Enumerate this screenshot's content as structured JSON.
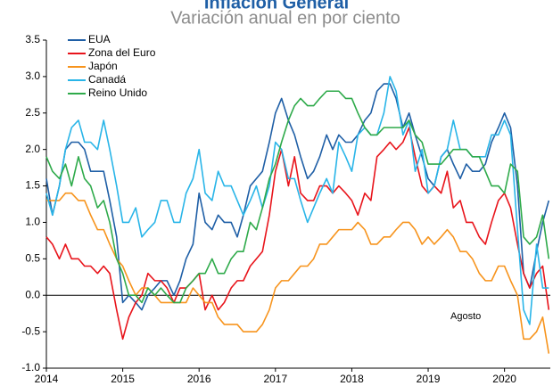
{
  "chart_data": {
    "type": "line",
    "title": "Inflación General",
    "subtitle": "Variación anual en por ciento",
    "annotation": "Agosto",
    "x": [
      2014,
      2014.08,
      2014.17,
      2014.25,
      2014.33,
      2014.42,
      2014.5,
      2014.58,
      2014.67,
      2014.75,
      2014.83,
      2014.92,
      2015,
      2015.08,
      2015.17,
      2015.25,
      2015.33,
      2015.42,
      2015.5,
      2015.58,
      2015.67,
      2015.75,
      2015.83,
      2015.92,
      2016,
      2016.08,
      2016.17,
      2016.25,
      2016.33,
      2016.42,
      2016.5,
      2016.58,
      2016.67,
      2016.75,
      2016.83,
      2016.92,
      2017,
      2017.08,
      2017.17,
      2017.25,
      2017.33,
      2017.42,
      2017.5,
      2017.58,
      2017.67,
      2017.75,
      2017.83,
      2017.92,
      2018,
      2018.08,
      2018.17,
      2018.25,
      2018.33,
      2018.42,
      2018.5,
      2018.58,
      2018.67,
      2018.75,
      2018.83,
      2018.92,
      2019,
      2019.08,
      2019.17,
      2019.25,
      2019.33,
      2019.42,
      2019.5,
      2019.58,
      2019.67,
      2019.75,
      2019.83,
      2019.92,
      2020,
      2020.08,
      2020.17,
      2020.25,
      2020.33,
      2020.42,
      2020.5,
      2020.58
    ],
    "series": [
      {
        "name": "EUA",
        "color": "#1f5fa6",
        "values": [
          1.6,
          1.1,
          1.5,
          2.0,
          2.1,
          2.1,
          2.0,
          1.7,
          1.7,
          1.7,
          1.3,
          0.8,
          -0.1,
          0.0,
          -0.1,
          -0.2,
          0.0,
          0.1,
          0.2,
          0.2,
          0.0,
          0.2,
          0.5,
          0.7,
          1.4,
          1.0,
          0.9,
          1.1,
          1.0,
          1.0,
          0.8,
          1.1,
          1.5,
          1.6,
          1.7,
          2.1,
          2.5,
          2.7,
          2.4,
          2.2,
          1.9,
          1.6,
          1.7,
          1.9,
          2.2,
          2.0,
          2.2,
          2.1,
          2.1,
          2.2,
          2.4,
          2.5,
          2.8,
          2.9,
          2.9,
          2.7,
          2.3,
          2.5,
          2.2,
          1.9,
          1.6,
          1.5,
          1.9,
          2.0,
          1.8,
          1.6,
          1.8,
          1.7,
          1.7,
          1.8,
          2.1,
          2.3,
          2.5,
          2.3,
          1.5,
          0.3,
          0.1,
          0.6,
          1.0,
          1.3
        ]
      },
      {
        "name": "Zona del Euro",
        "color": "#e8141b",
        "values": [
          0.8,
          0.7,
          0.5,
          0.7,
          0.5,
          0.5,
          0.4,
          0.4,
          0.3,
          0.4,
          0.3,
          -0.2,
          -0.6,
          -0.3,
          -0.1,
          0.0,
          0.3,
          0.2,
          0.2,
          0.1,
          -0.1,
          0.1,
          0.1,
          0.2,
          0.3,
          -0.2,
          0.0,
          -0.2,
          -0.1,
          0.1,
          0.2,
          0.2,
          0.4,
          0.5,
          0.6,
          1.1,
          1.7,
          2.0,
          1.5,
          1.9,
          1.4,
          1.3,
          1.3,
          1.5,
          1.5,
          1.4,
          1.5,
          1.4,
          1.3,
          1.1,
          1.4,
          1.3,
          1.9,
          2.0,
          2.1,
          2.0,
          2.1,
          2.3,
          1.9,
          1.5,
          1.4,
          1.5,
          1.4,
          1.7,
          1.2,
          1.3,
          1.0,
          1.0,
          0.8,
          0.7,
          1.0,
          1.3,
          1.4,
          1.2,
          0.7,
          0.3,
          0.1,
          0.3,
          0.4,
          -0.2
        ]
      },
      {
        "name": "Japón",
        "color": "#f7941d",
        "values": [
          1.3,
          1.3,
          1.3,
          1.4,
          1.4,
          1.3,
          1.3,
          1.1,
          0.9,
          0.9,
          0.7,
          0.5,
          0.4,
          0.2,
          0.0,
          0.1,
          0.1,
          0.0,
          -0.1,
          -0.1,
          -0.1,
          -0.1,
          -0.1,
          0.1,
          0.0,
          -0.1,
          -0.1,
          -0.3,
          -0.4,
          -0.4,
          -0.4,
          -0.5,
          -0.5,
          -0.5,
          -0.4,
          -0.2,
          0.1,
          0.2,
          0.2,
          0.3,
          0.4,
          0.4,
          0.5,
          0.7,
          0.7,
          0.8,
          0.9,
          0.9,
          0.9,
          1.0,
          0.9,
          0.7,
          0.7,
          0.8,
          0.8,
          0.9,
          1.0,
          1.0,
          0.9,
          0.7,
          0.8,
          0.7,
          0.8,
          0.9,
          0.8,
          0.6,
          0.6,
          0.5,
          0.3,
          0.2,
          0.2,
          0.4,
          0.4,
          0.2,
          0.0,
          -0.6,
          -0.6,
          -0.5,
          -0.3,
          -0.8
        ]
      },
      {
        "name": "Canadá",
        "color": "#29b5e8",
        "values": [
          1.4,
          1.1,
          1.5,
          2.0,
          2.3,
          2.4,
          2.1,
          2.1,
          2.0,
          2.4,
          2.0,
          1.5,
          1.0,
          1.0,
          1.2,
          0.8,
          0.9,
          1.0,
          1.3,
          1.3,
          1.0,
          1.0,
          1.4,
          1.6,
          2.0,
          1.4,
          1.3,
          1.7,
          1.5,
          1.5,
          1.3,
          1.1,
          1.3,
          1.5,
          1.2,
          1.5,
          2.1,
          2.0,
          1.6,
          1.6,
          1.3,
          1.0,
          1.2,
          1.4,
          1.6,
          1.4,
          2.1,
          1.9,
          1.7,
          2.2,
          2.3,
          2.2,
          2.2,
          2.5,
          3.0,
          2.8,
          2.2,
          2.4,
          1.7,
          2.0,
          1.4,
          1.5,
          1.9,
          2.0,
          2.4,
          2.0,
          2.0,
          1.9,
          1.9,
          1.9,
          2.2,
          2.2,
          2.4,
          2.2,
          0.9,
          -0.2,
          -0.4,
          0.7,
          0.1,
          0.1
        ]
      },
      {
        "name": "Reino Unido",
        "color": "#2eaa4a",
        "values": [
          1.9,
          1.7,
          1.6,
          1.8,
          1.5,
          1.9,
          1.6,
          1.5,
          1.2,
          1.3,
          1.0,
          0.5,
          0.3,
          0.0,
          0.0,
          -0.1,
          0.1,
          0.0,
          0.1,
          0.0,
          -0.1,
          -0.1,
          0.1,
          0.2,
          0.3,
          0.3,
          0.5,
          0.3,
          0.3,
          0.5,
          0.6,
          0.6,
          1.0,
          0.9,
          1.2,
          1.6,
          1.8,
          2.1,
          2.4,
          2.6,
          2.7,
          2.6,
          2.6,
          2.7,
          2.8,
          2.8,
          2.8,
          2.7,
          2.7,
          2.5,
          2.3,
          2.2,
          2.2,
          2.3,
          2.3,
          2.3,
          2.3,
          2.4,
          2.2,
          2.1,
          1.8,
          1.8,
          1.8,
          1.9,
          2.0,
          2.0,
          2.0,
          1.9,
          1.9,
          1.7,
          1.5,
          1.5,
          1.4,
          1.8,
          1.7,
          0.8,
          0.7,
          0.8,
          1.1,
          0.5
        ]
      }
    ],
    "xlim": [
      2014,
      2020.6
    ],
    "xticks": [
      2014,
      2015,
      2016,
      2017,
      2018,
      2019,
      2020
    ],
    "ylim": [
      -1,
      3.5
    ],
    "yticks": [
      {
        "value": -1,
        "label": "-1.0"
      },
      -0.5,
      {
        "value": 0,
        "label": "0.0"
      },
      0.5,
      {
        "value": 1,
        "label": "1.0"
      },
      1.5,
      {
        "value": 2,
        "label": "2.0"
      },
      2.5,
      {
        "value": 3,
        "label": "3.0"
      },
      3.5
    ],
    "legend": "top-left"
  }
}
